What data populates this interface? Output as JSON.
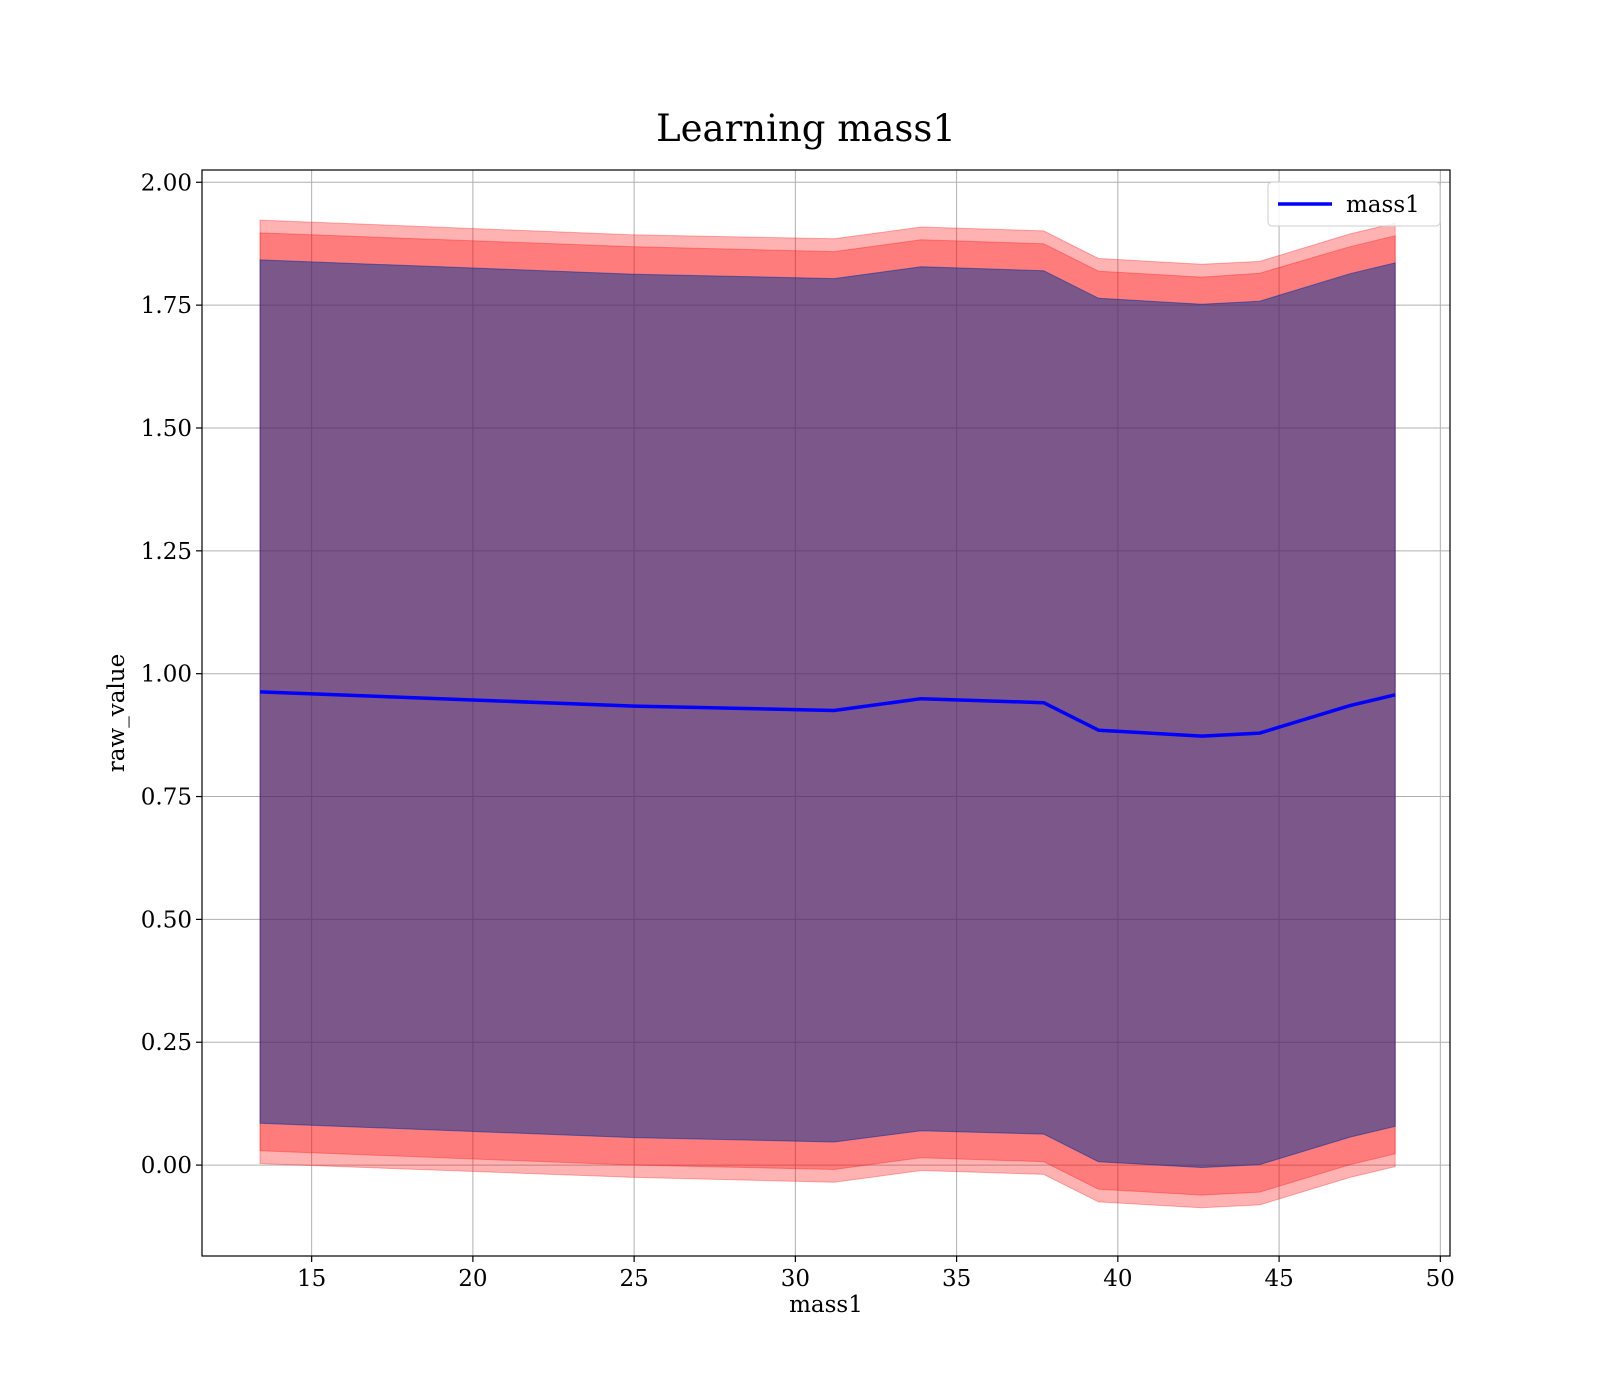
{
  "chart_data": {
    "type": "line",
    "title": "Learning mass1",
    "xlabel": "mass1",
    "ylabel": "raw_value",
    "xlim": [
      11.6,
      50.3
    ],
    "ylim": [
      -0.185,
      2.025
    ],
    "xticks": [
      15,
      20,
      25,
      30,
      35,
      40,
      45,
      50
    ],
    "yticks": [
      0.0,
      0.25,
      0.5,
      0.75,
      1.0,
      1.25,
      1.5,
      1.75,
      2.0
    ],
    "grid": true,
    "legend_position": "top-right",
    "x": [
      13.4,
      25.0,
      31.2,
      33.9,
      37.7,
      39.4,
      42.6,
      44.4,
      47.2,
      48.6
    ],
    "series": [
      {
        "name": "mass1",
        "color": "#0000ff",
        "values": [
          0.963,
          0.934,
          0.925,
          0.949,
          0.941,
          0.885,
          0.873,
          0.879,
          0.935,
          0.957
        ]
      }
    ],
    "bands": [
      {
        "color": "#ff0000",
        "upper": [
          1.923,
          1.893,
          1.885,
          1.909,
          1.901,
          1.845,
          1.833,
          1.839,
          1.895,
          1.917
        ],
        "lower": [
          0.003,
          -0.025,
          -0.035,
          -0.011,
          -0.019,
          -0.075,
          -0.087,
          -0.081,
          -0.025,
          -0.003
        ]
      },
      {
        "color": "#ff0000",
        "upper": [
          1.897,
          1.869,
          1.859,
          1.883,
          1.875,
          1.819,
          1.807,
          1.815,
          1.869,
          1.891
        ],
        "lower": [
          0.029,
          0.0,
          -0.009,
          0.015,
          0.007,
          -0.049,
          -0.061,
          -0.055,
          0.001,
          0.023
        ]
      },
      {
        "color": "#008000",
        "upper": [
          1.842,
          1.813,
          1.804,
          1.828,
          1.82,
          1.764,
          1.752,
          1.758,
          1.814,
          1.836
        ],
        "lower": [
          0.085,
          0.056,
          0.047,
          0.07,
          0.063,
          0.007,
          -0.005,
          0.001,
          0.057,
          0.079
        ]
      },
      {
        "color": "#0000ff",
        "upper": [
          1.842,
          1.813,
          1.804,
          1.828,
          1.82,
          1.764,
          1.752,
          1.758,
          1.814,
          1.836
        ],
        "lower": [
          0.085,
          0.056,
          0.047,
          0.07,
          0.063,
          0.007,
          -0.005,
          0.001,
          0.057,
          0.079
        ]
      }
    ]
  }
}
